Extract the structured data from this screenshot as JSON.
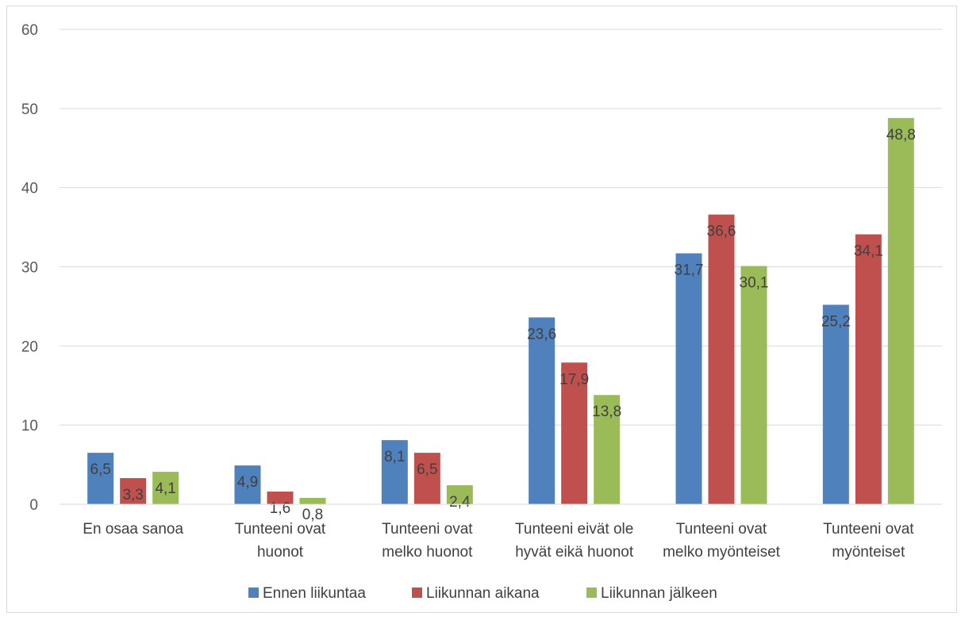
{
  "chart_data": {
    "type": "bar",
    "categories": [
      [
        "En osaa sanoa"
      ],
      [
        "Tunteeni ovat",
        "huonot"
      ],
      [
        "Tunteeni ovat",
        "melko huonot"
      ],
      [
        "Tunteeni eivät ole",
        "hyvät eikä huonot"
      ],
      [
        "Tunteeni ovat",
        "melko myönteiset"
      ],
      [
        "Tunteeni ovat",
        "myönteiset"
      ]
    ],
    "series": [
      {
        "name": "Ennen liikuntaa",
        "color": "#4f81bd",
        "values": [
          6.5,
          4.9,
          8.1,
          23.6,
          31.7,
          25.2
        ],
        "labels": [
          "6,5",
          "4,9",
          "8,1",
          "23,6",
          "31,7",
          "25,2"
        ]
      },
      {
        "name": "Liikunnan aikana",
        "color": "#c0504d",
        "values": [
          3.3,
          1.6,
          6.5,
          17.9,
          36.6,
          34.1
        ],
        "labels": [
          "3,3",
          "1,6",
          "6,5",
          "17,9",
          "36,6",
          "34,1"
        ]
      },
      {
        "name": "Liikunnan jälkeen",
        "color": "#9bbb59",
        "values": [
          4.1,
          0.8,
          2.4,
          13.8,
          30.1,
          48.8
        ],
        "labels": [
          "4,1",
          "0,8",
          "2,4",
          "13,8",
          "30,1",
          "48,8"
        ]
      }
    ],
    "ylim": [
      0,
      60
    ],
    "yticks": [
      0,
      10,
      20,
      30,
      40,
      50,
      60
    ],
    "ytick_labels": [
      "0",
      "10",
      "20",
      "30",
      "40",
      "50",
      "60"
    ],
    "grid": true,
    "legend_position": "bottom",
    "title": "",
    "xlabel": "",
    "ylabel": ""
  }
}
